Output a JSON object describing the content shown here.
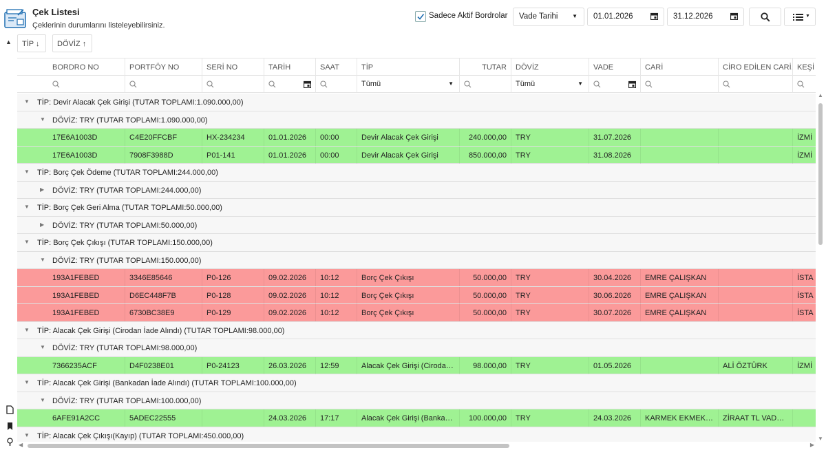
{
  "header": {
    "title": "Çek Listesi",
    "subtitle": "Çeklerinin durumlarını listeleyebilirsiniz.",
    "active_only_label": "Sadece Aktif Bordrolar",
    "active_only_checked": true,
    "date_field": "Vade Tarihi",
    "date_from": "01.01.2026",
    "date_to": "31.12.2026"
  },
  "group_panel": {
    "chips": [
      {
        "label": "TİP",
        "sort": "↓"
      },
      {
        "label": "DÖVİZ",
        "sort": "↑"
      }
    ]
  },
  "grid": {
    "columns": [
      "BORDRO NO",
      "PORTFÖY NO",
      "SERİ NO",
      "TARİH",
      "SAAT",
      "TİP",
      "TUTAR",
      "DÖVİZ",
      "VADE",
      "CARİ",
      "CİRO EDİLEN CARİ...",
      "KEŞİ"
    ],
    "filters": {
      "tip": "Tümü",
      "doviz": "Tümü"
    },
    "rows": [
      {
        "kind": "group1",
        "text": "TİP: Devir Alacak Çek Girişi (TUTAR TOPLAMI:1.090.000,00)",
        "expanded": true
      },
      {
        "kind": "group2",
        "text": "DÖVİZ: TRY (TUTAR TOPLAMI:1.090.000,00)",
        "expanded": true
      },
      {
        "kind": "data",
        "color": "green",
        "cells": [
          "17E6A1003D",
          "C4E20FFCBF",
          "HX-234234",
          "01.01.2026",
          "00:00",
          "Devir Alacak Çek Girişi",
          "240.000,00",
          "TRY",
          "31.07.2026",
          "",
          "",
          "İZMİ"
        ]
      },
      {
        "kind": "data",
        "color": "green",
        "cells": [
          "17E6A1003D",
          "7908F3988D",
          "P01-141",
          "01.01.2026",
          "00:00",
          "Devir Alacak Çek Girişi",
          "850.000,00",
          "TRY",
          "31.08.2026",
          "",
          "",
          "İZMİ"
        ]
      },
      {
        "kind": "group1",
        "text": "TİP: Borç Çek Ödeme (TUTAR TOPLAMI:244.000,00)",
        "expanded": true
      },
      {
        "kind": "group2",
        "text": "DÖVİZ: TRY (TUTAR TOPLAMI:244.000,00)",
        "expanded": false
      },
      {
        "kind": "group1",
        "text": "TİP: Borç Çek Geri Alma (TUTAR TOPLAMI:50.000,00)",
        "expanded": true
      },
      {
        "kind": "group2",
        "text": "DÖVİZ: TRY (TUTAR TOPLAMI:50.000,00)",
        "expanded": false
      },
      {
        "kind": "group1",
        "text": "TİP: Borç Çek Çıkışı (TUTAR TOPLAMI:150.000,00)",
        "expanded": true
      },
      {
        "kind": "group2",
        "text": "DÖVİZ: TRY (TUTAR TOPLAMI:150.000,00)",
        "expanded": true
      },
      {
        "kind": "data",
        "color": "red",
        "cells": [
          "193A1FEBED",
          "3346E85646",
          "P0-126",
          "09.02.2026",
          "10:12",
          "Borç Çek Çıkışı",
          "50.000,00",
          "TRY",
          "30.04.2026",
          "EMRE ÇALIŞKAN",
          "",
          "İSTA"
        ]
      },
      {
        "kind": "data",
        "color": "red",
        "cells": [
          "193A1FEBED",
          "D6EC448F7B",
          "P0-128",
          "09.02.2026",
          "10:12",
          "Borç Çek Çıkışı",
          "50.000,00",
          "TRY",
          "30.06.2026",
          "EMRE ÇALIŞKAN",
          "",
          "İSTA"
        ]
      },
      {
        "kind": "data",
        "color": "red",
        "cells": [
          "193A1FEBED",
          "6730BC38E9",
          "P0-129",
          "09.02.2026",
          "10:12",
          "Borç Çek Çıkışı",
          "50.000,00",
          "TRY",
          "30.07.2026",
          "EMRE ÇALIŞKAN",
          "",
          "İSTA"
        ]
      },
      {
        "kind": "group1",
        "text": "TİP: Alacak Çek Girişi (Cirodan İade Alındı) (TUTAR TOPLAMI:98.000,00)",
        "expanded": true
      },
      {
        "kind": "group2",
        "text": "DÖVİZ: TRY (TUTAR TOPLAMI:98.000,00)",
        "expanded": true
      },
      {
        "kind": "data",
        "color": "green",
        "cells": [
          "7366235ACF",
          "D4F0238E01",
          "P0-24123",
          "26.03.2026",
          "12:59",
          "Alacak Çek Girişi (Cirodan...",
          "98.000,00",
          "TRY",
          "01.05.2026",
          "",
          "ALİ ÖZTÜRK",
          "İZMİ"
        ]
      },
      {
        "kind": "group1",
        "text": "TİP: Alacak Çek Girişi (Bankadan İade Alındı) (TUTAR TOPLAMI:100.000,00)",
        "expanded": true
      },
      {
        "kind": "group2",
        "text": "DÖVİZ: TRY (TUTAR TOPLAMI:100.000,00)",
        "expanded": true
      },
      {
        "kind": "data",
        "color": "green",
        "cells": [
          "6AFE91A2CC",
          "5ADEC22555",
          "",
          "24.03.2026",
          "17:17",
          "Alacak Çek Girişi (Bankad...",
          "100.000,00",
          "TRY",
          "24.03.2026",
          "KARMEK EKMEK S...",
          "ZİRAAT TL VADESİZ",
          ""
        ]
      },
      {
        "kind": "group1",
        "text": "TİP: Alacak Çek Çıkışı(Kayıp) (TUTAR TOPLAMI:450.000,00)",
        "expanded": true
      }
    ]
  },
  "colors": {
    "green_row": "#9ff293",
    "red_row": "#fb9a9a",
    "group_row": "#f7f7f7",
    "accent": "#1f6fb2"
  },
  "icons": [
    "cheque-app-icon",
    "check-icon",
    "calendar-icon",
    "search-icon",
    "list-menu-icon",
    "file-icon",
    "bookmark-icon",
    "lightbulb-icon"
  ]
}
